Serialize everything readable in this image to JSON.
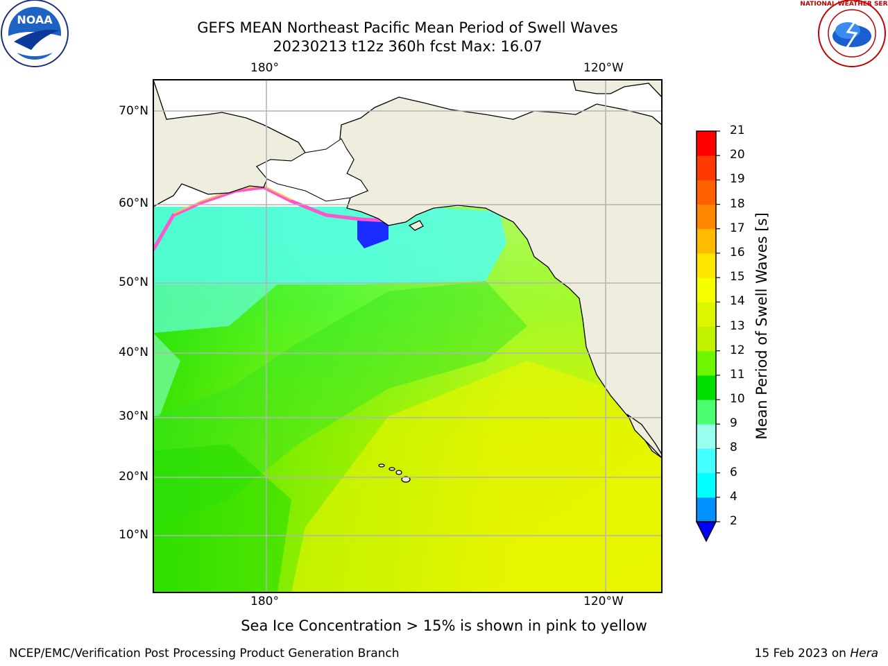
{
  "title": {
    "line1": "GEFS MEAN Northeast Pacific Mean Period of Swell Waves",
    "line2": "20230213 t12z 360h fcst   Max: 16.07"
  },
  "map": {
    "lon_labels_top": [
      "180°",
      "120°W"
    ],
    "lon_labels_bottom": [
      "180°",
      "120°W"
    ],
    "lat_labels": [
      "70°N",
      "60°N",
      "50°N",
      "40°N",
      "30°N",
      "20°N",
      "10°N"
    ],
    "colors": {
      "land": "#efedde",
      "grid": "#b4b4b4"
    }
  },
  "colorbar": {
    "label": "Mean Period of Swell Waves [s]",
    "ticks": [
      "21",
      "20",
      "19",
      "18",
      "17",
      "16",
      "15",
      "14",
      "13",
      "12",
      "11",
      "10",
      "9",
      "8",
      "6",
      "4",
      "2"
    ],
    "colors": [
      "#ff0000",
      "#ff3a00",
      "#ff6000",
      "#ff8800",
      "#ffbb00",
      "#ffe600",
      "#f5ff00",
      "#dcf500",
      "#c2f200",
      "#6ef500",
      "#00e000",
      "#4cff70",
      "#99ffee",
      "#44ffff",
      "#00ffff",
      "#0090ff",
      "#0000ff"
    ]
  },
  "logos": {
    "left": "NOAA",
    "right": "NATIONAL WEATHER SERVICE"
  },
  "note": "Sea Ice Concentration > 15% is shown in pink to yellow",
  "footer": {
    "left": "NCEP/EMC/Verification Post Processing Product Generation Branch",
    "right_prefix": "15 Feb 2023 on ",
    "right_host": "Hera"
  }
}
